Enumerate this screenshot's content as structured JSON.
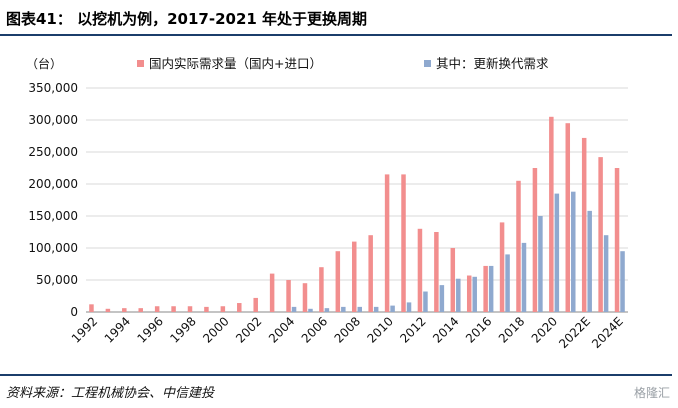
{
  "header": {
    "title": "图表41： 以挖机为例，2017-2021 年处于更换周期"
  },
  "footer": {
    "source": "资料来源：工程机械协会、中信建投"
  },
  "watermark": {
    "text": "格隆汇"
  },
  "colors": {
    "accent_rule": "#1b3d6b",
    "series1": "#f28e8e",
    "series2": "#8fa9cf"
  },
  "chart_data": {
    "type": "bar",
    "unit_label": "（台）",
    "ylim": [
      0,
      350000
    ],
    "yticks": [
      "0",
      "50,000",
      "100,000",
      "150,000",
      "200,000",
      "250,000",
      "300,000",
      "350,000"
    ],
    "ytick_values": [
      0,
      50000,
      100000,
      150000,
      200000,
      250000,
      300000,
      350000
    ],
    "grid": true,
    "legend_position": "top",
    "categories": [
      "1992",
      "1993",
      "1994",
      "1995",
      "1996",
      "1997",
      "1998",
      "1999",
      "2000",
      "2001",
      "2002",
      "2003",
      "2004",
      "2005",
      "2006",
      "2007",
      "2008",
      "2009",
      "2010",
      "2011",
      "2012",
      "2013",
      "2014",
      "2015",
      "2016",
      "2017",
      "2018",
      "2019",
      "2020",
      "2021",
      "2022E",
      "2023E",
      "2024E"
    ],
    "xtick_labels": [
      "1992",
      "1994",
      "1996",
      "1998",
      "2000",
      "2002",
      "2004",
      "2006",
      "2008",
      "2010",
      "2012",
      "2014",
      "2016",
      "2018",
      "2020",
      "2022E",
      "2024E"
    ],
    "series": [
      {
        "name": "国内实际需求量（国内+进口）",
        "values": [
          12000,
          5000,
          6000,
          6000,
          9000,
          9000,
          9000,
          8000,
          9000,
          14000,
          22000,
          60000,
          50000,
          45000,
          70000,
          95000,
          110000,
          120000,
          215000,
          215000,
          130000,
          125000,
          100000,
          57000,
          72000,
          140000,
          205000,
          225000,
          305000,
          295000,
          272000,
          242000,
          225000
        ]
      },
      {
        "name": "其中：更新换代需求",
        "values": [
          0,
          0,
          0,
          0,
          0,
          0,
          0,
          0,
          0,
          0,
          0,
          0,
          8000,
          5000,
          6000,
          8000,
          8000,
          8000,
          10000,
          15000,
          32000,
          42000,
          52000,
          55000,
          72000,
          90000,
          108000,
          150000,
          185000,
          188000,
          158000,
          120000,
          95000
        ]
      }
    ]
  }
}
